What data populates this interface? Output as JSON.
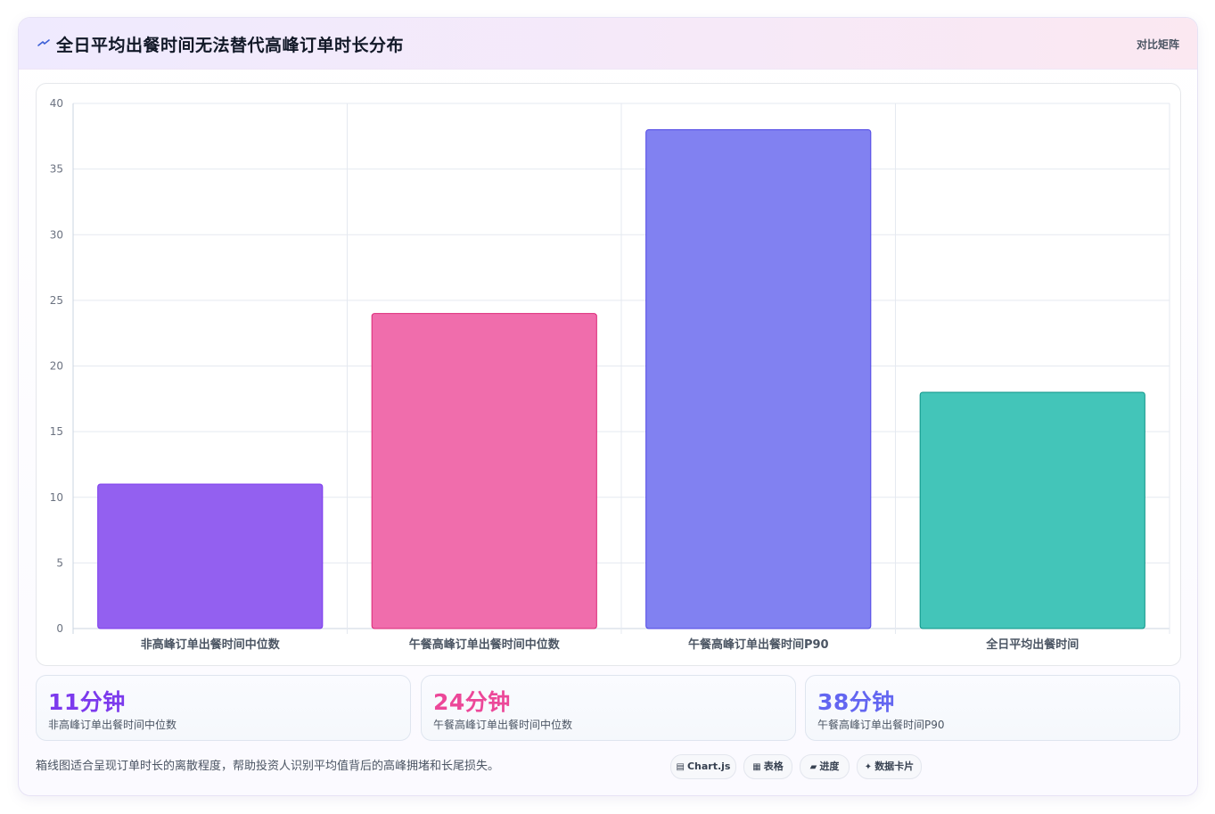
{
  "header": {
    "title": "全日平均出餐时间无法替代高峰订单时长分布",
    "tag": "对比矩阵"
  },
  "chart_data": {
    "type": "bar",
    "categories": [
      "非高峰订单出餐时间中位数",
      "午餐高峰订单出餐时间中位数",
      "午餐高峰订单出餐时间P90",
      "全日平均出餐时间"
    ],
    "values": [
      11,
      24,
      38,
      18
    ],
    "colors": [
      "#9360f0",
      "#f06dac",
      "#8181f1",
      "#43c5b9"
    ],
    "borders": [
      "#7c3aed",
      "#db2777",
      "#4f46e5",
      "#0d9488"
    ],
    "ylim": [
      0,
      40
    ],
    "yticks": [
      0,
      5,
      10,
      15,
      20,
      25,
      30,
      35,
      40
    ],
    "grid": true,
    "title": "",
    "xlabel": "",
    "ylabel": ""
  },
  "kpis": [
    {
      "value": "11分钟",
      "label": "非高峰订单出餐时间中位数",
      "color": "#7c3aed"
    },
    {
      "value": "24分钟",
      "label": "午餐高峰订单出餐时间中位数",
      "color": "#ec4899"
    },
    {
      "value": "38分钟",
      "label": "午餐高峰订单出餐时间P90",
      "color": "#6366f1"
    }
  ],
  "note": "箱线图适合呈现订单时长的离散程度，帮助投资人识别平均值背后的高峰拥堵和长尾损失。",
  "chips": [
    {
      "icon": "chart-icon",
      "glyph": "▤",
      "label": "Chart.js"
    },
    {
      "icon": "table-icon",
      "glyph": "▦",
      "label": "表格"
    },
    {
      "icon": "progress-icon",
      "glyph": "▰",
      "label": "进度"
    },
    {
      "icon": "sparkle-icon",
      "glyph": "✦",
      "label": "数据卡片"
    }
  ]
}
